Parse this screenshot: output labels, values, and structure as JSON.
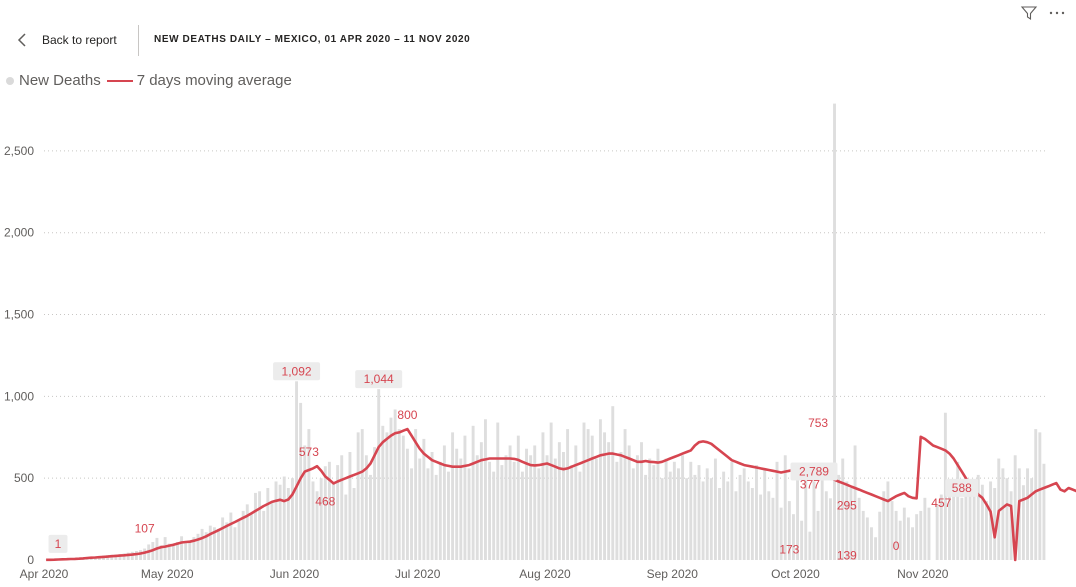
{
  "header": {
    "back_label": "Back to report",
    "title": "NEW DEATHS DAILY – MEXICO, 01 APR 2020 – 11 NOV 2020",
    "filter_icon": "filter-icon",
    "more_icon": "more-options-icon"
  },
  "colors": {
    "bars": "#dedede",
    "line": "#d64550",
    "grid": "#c8c6c4",
    "axis_text": "#605e5c",
    "label_text": "#d64550"
  },
  "chart_data": {
    "type": "bar",
    "title": "NEW DEATHS DAILY – MEXICO, 01 APR 2020 – 11 NOV 2020",
    "xlabel": "",
    "ylabel": "",
    "x_start": "2020-04-01",
    "x_ticks": [
      "Apr 2020",
      "May 2020",
      "Jun 2020",
      "Jul 2020",
      "Aug 2020",
      "Sep 2020",
      "Oct 2020",
      "Nov 2020"
    ],
    "y_ticks": [
      "0",
      "500",
      "1,000",
      "1,500",
      "2,000",
      "2,500"
    ],
    "ylim": [
      0,
      2750
    ],
    "grid": true,
    "legend_position": "top-left",
    "series": [
      {
        "name": "New Deaths",
        "kind": "bar",
        "values": [
          1,
          3,
          4,
          5,
          6,
          8,
          10,
          12,
          14,
          16,
          18,
          20,
          22,
          25,
          28,
          30,
          32,
          34,
          36,
          40,
          45,
          50,
          55,
          60,
          70,
          95,
          110,
          135,
          90,
          140,
          100,
          95,
          110,
          145,
          115,
          120,
          140,
          160,
          190,
          170,
          210,
          200,
          190,
          260,
          230,
          290,
          200,
          240,
          300,
          340,
          280,
          410,
          420,
          300,
          440,
          350,
          480,
          460,
          510,
          440,
          500,
          1092,
          960,
          700,
          800,
          480,
          420,
          500,
          573,
          600,
          468,
          580,
          640,
          400,
          660,
          440,
          780,
          800,
          640,
          520,
          690,
          1044,
          820,
          780,
          870,
          920,
          800,
          760,
          680,
          560,
          800,
          620,
          740,
          560,
          660,
          520,
          600,
          700,
          540,
          780,
          680,
          620,
          760,
          560,
          820,
          640,
          720,
          860,
          600,
          540,
          840,
          580,
          640,
          700,
          600,
          760,
          540,
          680,
          640,
          700,
          560,
          780,
          640,
          840,
          620,
          720,
          660,
          800,
          580,
          700,
          540,
          840,
          800,
          760,
          620,
          860,
          780,
          720,
          940,
          600,
          660,
          800,
          700,
          560,
          640,
          720,
          520,
          620,
          580,
          680,
          500,
          620,
          540,
          600,
          560,
          640,
          500,
          600,
          520,
          580,
          480,
          560,
          500,
          620,
          440,
          540,
          480,
          600,
          420,
          520,
          560,
          480,
          440,
          580,
          400,
          560,
          420,
          380,
          600,
          320,
          640,
          360,
          280,
          500,
          240,
          560,
          173,
          480,
          300,
          560,
          420,
          377,
          2789,
          520,
          620,
          480,
          440,
          700,
          380,
          300,
          260,
          200,
          139,
          295,
          420,
          480,
          360,
          300,
          240,
          320,
          260,
          200,
          280,
          300,
          380,
          320,
          0,
          340,
          400,
          900,
          460,
          420,
          600,
          380,
          500,
          480,
          440,
          520,
          460,
          360,
          480,
          440,
          620,
          560,
          500,
          420,
          640,
          560,
          457,
          560,
          500,
          800,
          780,
          588
        ],
        "data_labels": [
          {
            "date": "2020-04-01",
            "text": "1"
          },
          {
            "date": "2020-06-01",
            "text": "1,092"
          },
          {
            "date": "2020-06-21",
            "text": "1,044"
          },
          {
            "date": "2020-10-05",
            "text": "2,789"
          },
          {
            "date": "2020-10-25",
            "text": "0"
          },
          {
            "date": "2020-11-10",
            "text": "588"
          }
        ]
      },
      {
        "name": "7 days moving average",
        "kind": "line",
        "values": [
          1,
          1,
          2,
          3,
          4,
          5,
          6,
          7,
          8,
          10,
          12,
          14,
          15,
          17,
          19,
          21,
          23,
          25,
          27,
          29,
          31,
          33,
          36,
          40,
          45,
          52,
          60,
          70,
          78,
          82,
          88,
          93,
          100,
          107,
          110,
          112,
          118,
          125,
          134,
          145,
          158,
          170,
          182,
          195,
          208,
          220,
          232,
          245,
          258,
          270,
          285,
          300,
          315,
          330,
          342,
          355,
          362,
          368,
          360,
          370,
          400,
          450,
          500,
          540,
          550,
          560,
          573,
          545,
          510,
          490,
          468,
          480,
          490,
          500,
          510,
          520,
          530,
          540,
          560,
          590,
          640,
          690,
          720,
          740,
          760,
          775,
          780,
          790,
          800,
          760,
          720,
          680,
          650,
          630,
          610,
          600,
          590,
          580,
          575,
          570,
          570,
          570,
          575,
          580,
          590,
          600,
          610,
          615,
          620,
          620,
          620,
          620,
          620,
          620,
          618,
          612,
          600,
          590,
          580,
          578,
          580,
          585,
          590,
          580,
          570,
          560,
          555,
          560,
          570,
          580,
          590,
          600,
          610,
          620,
          630,
          640,
          645,
          650,
          650,
          645,
          640,
          630,
          620,
          610,
          600,
          600,
          605,
          600,
          598,
          595,
          600,
          610,
          620,
          630,
          640,
          650,
          660,
          670,
          700,
          720,
          725,
          720,
          710,
          690,
          670,
          650,
          630,
          610,
          600,
          590,
          580,
          575,
          570,
          565,
          560,
          555,
          550,
          545,
          540,
          535,
          540,
          545,
          550,
          548,
          545,
          540,
          535,
          530,
          525,
          520,
          510,
          500,
          490,
          480,
          470,
          460,
          450,
          440,
          430,
          420,
          410,
          400,
          390,
          380,
          370,
          360,
          375,
          390,
          400,
          410,
          390,
          380,
          377,
          753,
          740,
          720,
          700,
          690,
          680,
          670,
          650,
          620,
          580,
          540,
          500,
          460,
          430,
          400,
          380,
          340,
          295,
          139,
          300,
          320,
          340,
          330,
          0,
          360,
          370,
          380,
          400,
          420,
          430,
          440,
          450,
          460,
          470,
          430,
          420,
          440,
          430,
          420,
          450,
          430,
          457,
          440,
          430,
          460,
          470,
          588
        ]
      }
    ],
    "line_labels": [
      {
        "date": "2020-04-01",
        "text": "1"
      },
      {
        "date": "2020-04-25",
        "text": "107"
      },
      {
        "date": "2020-06-04",
        "text": "573"
      },
      {
        "date": "2020-06-08",
        "text": "468"
      },
      {
        "date": "2020-06-28",
        "text": "800"
      },
      {
        "date": "2020-09-29",
        "text": "173"
      },
      {
        "date": "2020-10-04",
        "text": "377"
      },
      {
        "date": "2020-10-06",
        "text": "753"
      },
      {
        "date": "2020-10-13",
        "text": "295"
      },
      {
        "date": "2020-10-13",
        "text": "139"
      },
      {
        "date": "2020-11-05",
        "text": "457"
      }
    ]
  }
}
